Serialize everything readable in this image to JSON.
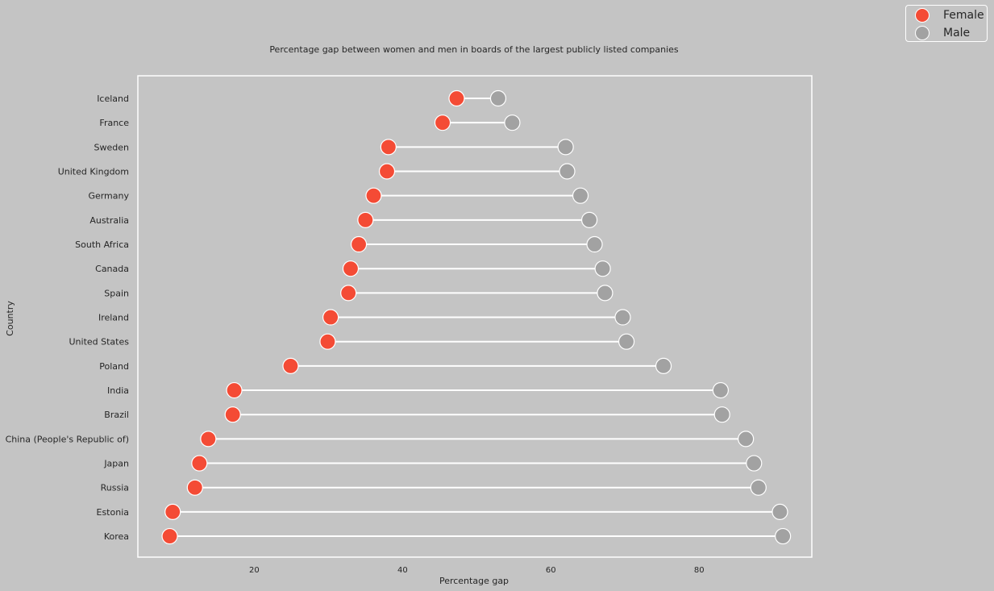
{
  "chart_data": {
    "type": "scatter",
    "style": "dumbbell",
    "title": "Percentage gap between women and men in boards of the largest publicly listed companies",
    "xlabel": "Percentage gap",
    "ylabel": "Country",
    "xlim": [
      4.3,
      95.2
    ],
    "xticks": [
      20,
      40,
      60,
      80
    ],
    "grid": false,
    "legend_position": "top-right",
    "categories": [
      "Iceland",
      "France",
      "Sweden",
      "United Kingdom",
      "Germany",
      "Australia",
      "South Africa",
      "Canada",
      "Spain",
      "Ireland",
      "United States",
      "Poland",
      "India",
      "Brazil",
      "China (People's Republic of)",
      "Japan",
      "Russia",
      "Estonia",
      "Korea"
    ],
    "series": [
      {
        "name": "Female",
        "color": "#f44b35",
        "values": [
          47.3,
          45.4,
          38.1,
          37.9,
          36.1,
          35.0,
          34.1,
          33.0,
          32.7,
          30.3,
          29.9,
          24.9,
          17.3,
          17.1,
          13.8,
          12.6,
          12.0,
          9.0,
          8.6
        ]
      },
      {
        "name": "Male",
        "color": "#a2a2a2",
        "values": [
          52.9,
          54.8,
          62.0,
          62.2,
          64.0,
          65.2,
          65.9,
          67.0,
          67.3,
          69.7,
          70.2,
          75.2,
          82.9,
          83.1,
          86.3,
          87.4,
          88.0,
          90.9,
          91.3
        ]
      }
    ],
    "connector_color": "#ffffff"
  }
}
